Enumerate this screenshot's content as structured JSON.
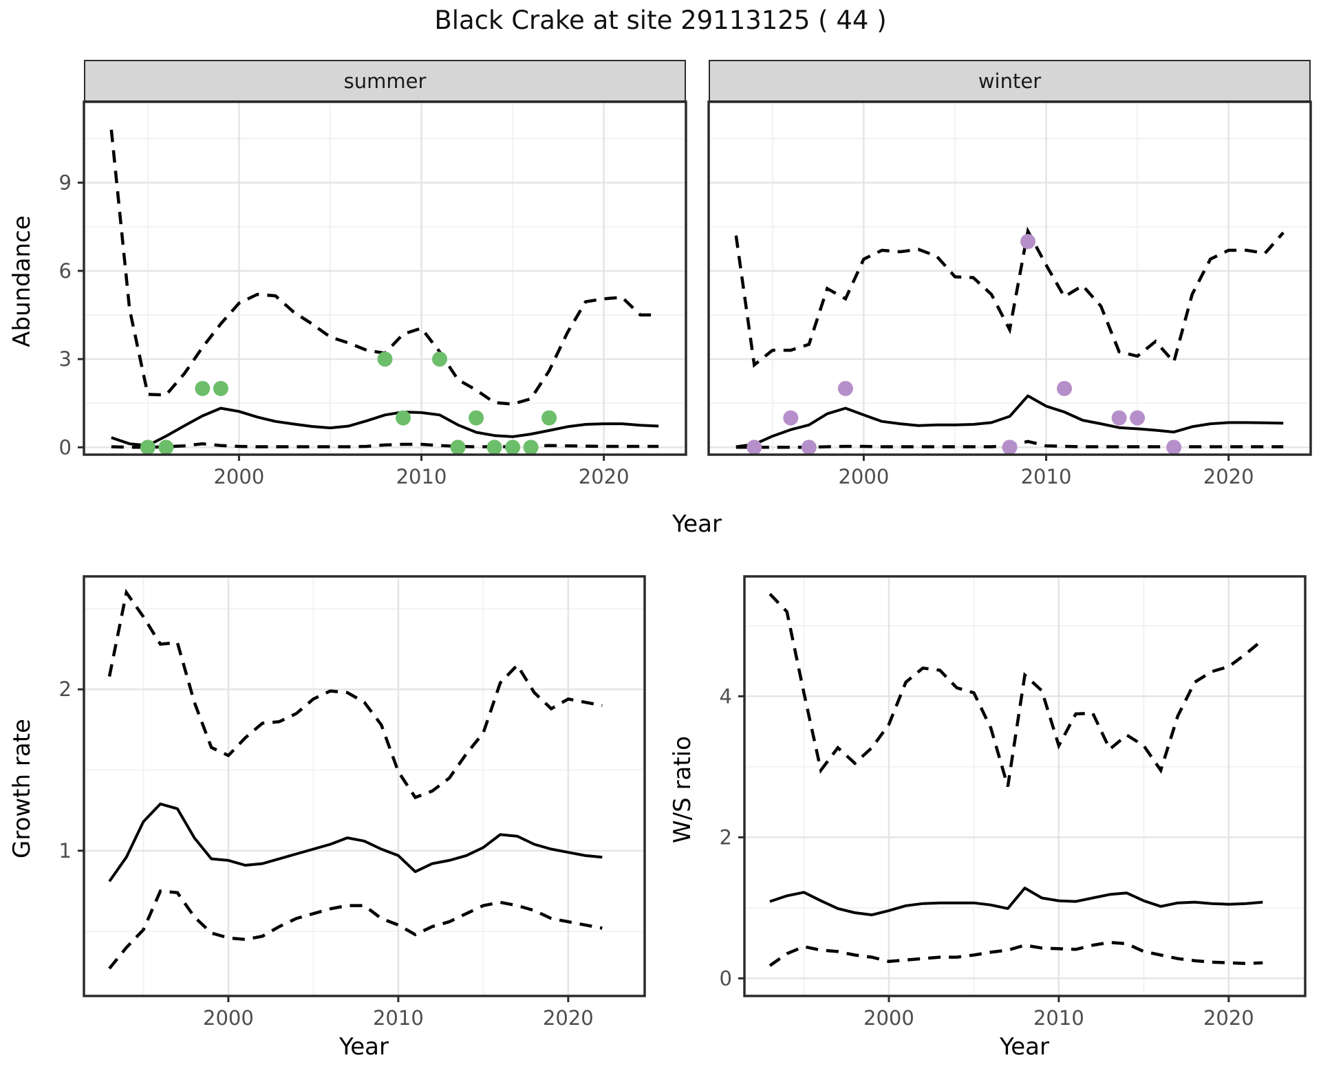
{
  "title": "Black Crake at site 29113125 ( 44 )",
  "colors": {
    "summer_points": "#6CBE6A",
    "winter_points": "#B58FC9",
    "line": "#000000",
    "grid_major": "#E4E4E4",
    "grid_minor": "#F2F2F2",
    "strip_bg": "#D6D6D6",
    "panel_border": "#2B2B2B",
    "tick_label": "#4D4D4D"
  },
  "chart_data": {
    "abundance": {
      "type": "line",
      "ylabel": "Abundance",
      "xlabel": "Year",
      "xlim": [
        1991.5,
        2024.5
      ],
      "ylim": [
        -0.25,
        11.75
      ],
      "xticks": [
        2000,
        2010,
        2020
      ],
      "xminor": [
        1995,
        2005,
        2015
      ],
      "yticks": [
        0,
        3,
        6,
        9
      ],
      "yminor": [
        1.5,
        4.5,
        7.5,
        10.5
      ],
      "years": [
        1993,
        1994,
        1995,
        1996,
        1997,
        1998,
        1999,
        2000,
        2001,
        2002,
        2003,
        2004,
        2005,
        2006,
        2007,
        2008,
        2009,
        2010,
        2011,
        2012,
        2013,
        2014,
        2015,
        2016,
        2017,
        2018,
        2019,
        2020,
        2021,
        2022,
        2023
      ],
      "facets": [
        {
          "label": "summer",
          "point_color": "#6CBE6A",
          "median": [
            0.33,
            0.12,
            0.06,
            0.38,
            0.73,
            1.07,
            1.33,
            1.22,
            1.03,
            0.88,
            0.79,
            0.71,
            0.66,
            0.72,
            0.9,
            1.1,
            1.2,
            1.18,
            1.1,
            0.76,
            0.51,
            0.4,
            0.36,
            0.45,
            0.57,
            0.7,
            0.78,
            0.8,
            0.8,
            0.75,
            0.72
          ],
          "upper": [
            10.8,
            4.7,
            1.8,
            1.78,
            2.5,
            3.4,
            4.2,
            4.9,
            5.2,
            5.15,
            4.6,
            4.2,
            3.75,
            3.55,
            3.3,
            3.2,
            3.85,
            4.05,
            3.25,
            2.3,
            1.95,
            1.52,
            1.47,
            1.65,
            2.6,
            3.9,
            4.95,
            5.05,
            5.1,
            4.5,
            4.5
          ],
          "lower": [
            0.02,
            0.0,
            0.0,
            0.02,
            0.05,
            0.12,
            0.06,
            0.03,
            0.02,
            0.02,
            0.02,
            0.02,
            0.02,
            0.02,
            0.03,
            0.08,
            0.1,
            0.1,
            0.06,
            0.03,
            0.02,
            0.02,
            0.02,
            0.03,
            0.06,
            0.05,
            0.04,
            0.03,
            0.03,
            0.03,
            0.03
          ],
          "obs_years": [
            1995,
            1996,
            1998,
            1999,
            2008,
            2009,
            2011,
            2012,
            2013,
            2014,
            2015,
            2016,
            2017
          ],
          "obs_values": [
            0,
            0,
            2,
            2,
            3,
            1,
            3,
            0,
            1,
            0,
            0,
            0,
            1
          ]
        },
        {
          "label": "winter",
          "point_color": "#B58FC9",
          "median": [
            0.02,
            0.1,
            0.38,
            0.6,
            0.76,
            1.14,
            1.33,
            1.1,
            0.88,
            0.8,
            0.74,
            0.76,
            0.76,
            0.78,
            0.84,
            1.05,
            1.75,
            1.4,
            1.2,
            0.92,
            0.8,
            0.67,
            0.63,
            0.58,
            0.52,
            0.7,
            0.8,
            0.84,
            0.84,
            0.83,
            0.82
          ],
          "upper": [
            7.2,
            2.8,
            3.3,
            3.3,
            3.5,
            5.4,
            5.05,
            6.4,
            6.7,
            6.65,
            6.73,
            6.5,
            5.8,
            5.77,
            5.2,
            4.0,
            7.35,
            6.2,
            5.12,
            5.5,
            4.8,
            3.25,
            3.1,
            3.6,
            2.9,
            5.2,
            6.4,
            6.7,
            6.7,
            6.6,
            7.3
          ],
          "lower": [
            0.0,
            0.0,
            0.0,
            0.0,
            0.0,
            0.02,
            0.03,
            0.03,
            0.02,
            0.02,
            0.02,
            0.02,
            0.02,
            0.02,
            0.02,
            0.05,
            0.2,
            0.05,
            0.03,
            0.02,
            0.02,
            0.02,
            0.02,
            0.02,
            0.02,
            0.02,
            0.02,
            0.02,
            0.02,
            0.02,
            0.02
          ],
          "obs_years": [
            1994,
            1996,
            1997,
            1999,
            2008,
            2009,
            2011,
            2014,
            2015,
            2017
          ],
          "obs_values": [
            0,
            1,
            0,
            2,
            0,
            7,
            2,
            1,
            1,
            0
          ]
        }
      ]
    },
    "growth": {
      "type": "line",
      "ylabel": "Growth rate",
      "xlabel": "Year",
      "xlim": [
        1991.5,
        2024.5
      ],
      "ylim": [
        0.1,
        2.7
      ],
      "xticks": [
        2000,
        2010,
        2020
      ],
      "xminor": [
        1995,
        2005,
        2015
      ],
      "yticks": [
        1,
        2
      ],
      "yminor": [
        0.5,
        1.5,
        2.5
      ],
      "years": [
        1993,
        1994,
        1995,
        1996,
        1997,
        1998,
        1999,
        2000,
        2001,
        2002,
        2003,
        2004,
        2005,
        2006,
        2007,
        2008,
        2009,
        2010,
        2011,
        2012,
        2013,
        2014,
        2015,
        2016,
        2017,
        2018,
        2019,
        2020,
        2021,
        2022
      ],
      "median": [
        0.81,
        0.96,
        1.18,
        1.29,
        1.26,
        1.08,
        0.95,
        0.94,
        0.91,
        0.92,
        0.95,
        0.98,
        1.01,
        1.04,
        1.08,
        1.06,
        1.01,
        0.97,
        0.87,
        0.92,
        0.94,
        0.97,
        1.02,
        1.1,
        1.09,
        1.04,
        1.01,
        0.99,
        0.97,
        0.96
      ],
      "upper": [
        2.08,
        2.6,
        2.45,
        2.28,
        2.29,
        1.92,
        1.64,
        1.59,
        1.7,
        1.79,
        1.8,
        1.85,
        1.94,
        1.99,
        1.98,
        1.92,
        1.78,
        1.49,
        1.33,
        1.37,
        1.45,
        1.6,
        1.73,
        2.04,
        2.15,
        1.98,
        1.88,
        1.94,
        1.92,
        1.9
      ],
      "lower": [
        0.27,
        0.4,
        0.51,
        0.75,
        0.74,
        0.59,
        0.49,
        0.46,
        0.45,
        0.47,
        0.53,
        0.58,
        0.61,
        0.64,
        0.66,
        0.66,
        0.58,
        0.54,
        0.48,
        0.53,
        0.56,
        0.61,
        0.66,
        0.68,
        0.66,
        0.63,
        0.58,
        0.56,
        0.54,
        0.52
      ]
    },
    "ws_ratio": {
      "type": "line",
      "ylabel": "W/S ratio",
      "xlabel": "Year",
      "xlim": [
        1991.5,
        2024.5
      ],
      "ylim": [
        -0.25,
        5.7
      ],
      "xticks": [
        2000,
        2010,
        2020
      ],
      "xminor": [
        1995,
        2005,
        2015
      ],
      "yticks": [
        0,
        2,
        4
      ],
      "yminor": [
        1,
        3,
        5
      ],
      "years": [
        1993,
        1994,
        1995,
        1996,
        1997,
        1998,
        1999,
        2000,
        2001,
        2002,
        2003,
        2004,
        2005,
        2006,
        2007,
        2008,
        2009,
        2010,
        2011,
        2012,
        2013,
        2014,
        2015,
        2016,
        2017,
        2018,
        2019,
        2020,
        2021,
        2022
      ],
      "median": [
        1.09,
        1.17,
        1.22,
        1.1,
        0.99,
        0.93,
        0.9,
        0.96,
        1.03,
        1.06,
        1.07,
        1.07,
        1.07,
        1.04,
        0.99,
        1.28,
        1.14,
        1.1,
        1.09,
        1.14,
        1.19,
        1.21,
        1.1,
        1.02,
        1.07,
        1.08,
        1.06,
        1.05,
        1.06,
        1.08
      ],
      "upper": [
        5.45,
        5.2,
        4.05,
        2.95,
        3.27,
        3.05,
        3.27,
        3.6,
        4.2,
        4.4,
        4.37,
        4.12,
        4.05,
        3.55,
        2.72,
        4.3,
        4.08,
        3.3,
        3.75,
        3.76,
        3.25,
        3.45,
        3.3,
        2.95,
        3.72,
        4.2,
        4.35,
        4.42,
        4.6,
        4.8
      ],
      "lower": [
        0.18,
        0.35,
        0.45,
        0.4,
        0.38,
        0.33,
        0.3,
        0.24,
        0.26,
        0.28,
        0.3,
        0.3,
        0.33,
        0.37,
        0.4,
        0.47,
        0.43,
        0.42,
        0.41,
        0.47,
        0.51,
        0.49,
        0.38,
        0.33,
        0.28,
        0.25,
        0.23,
        0.22,
        0.21,
        0.22
      ]
    }
  }
}
